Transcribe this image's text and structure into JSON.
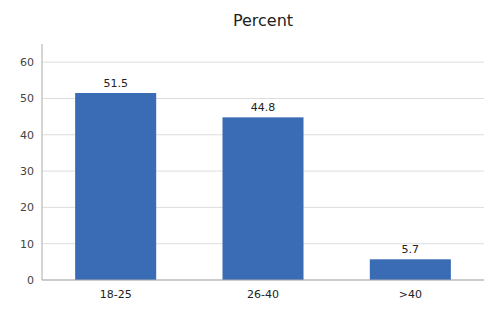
{
  "chart_data": {
    "type": "bar",
    "title": "Percent",
    "categories": [
      "18-25",
      "26-40",
      ">40"
    ],
    "values": [
      51.5,
      44.8,
      5.7
    ],
    "color": "#3A6CB5",
    "ylim": [
      0,
      65
    ],
    "yticks": [
      0,
      10,
      20,
      30,
      40,
      50,
      60
    ],
    "grid": true,
    "data_labels": true
  }
}
